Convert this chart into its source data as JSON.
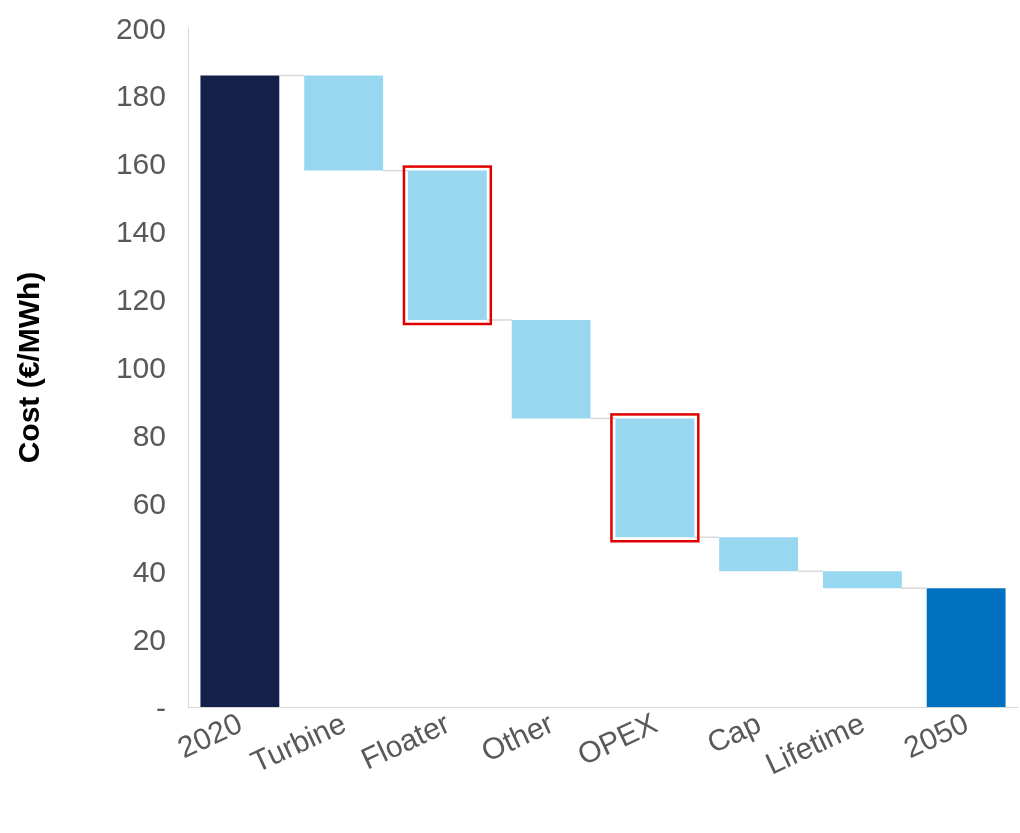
{
  "chart_data": {
    "type": "bar",
    "ylabel": "Cost (€/MWh)",
    "categories": [
      "2020",
      "Turbine",
      "Floater",
      "Other",
      "OPEX",
      "Cap",
      "Lifetime",
      "2050"
    ],
    "values": [
      186,
      -28,
      -44,
      -29,
      -35,
      -10,
      -5,
      35
    ],
    "base": [
      0,
      186,
      158,
      114,
      85,
      50,
      40,
      0
    ],
    "colors": [
      "#13214a",
      "#97d7ef",
      "#97d7ef",
      "#97d7ef",
      "#97d7ef",
      "#97d7ef",
      "#97d7ef",
      "#0070c0"
    ],
    "ylim": [
      0,
      200
    ],
    "yticks": [
      {
        "value": 0,
        "label": "-"
      },
      20,
      40,
      60,
      80,
      100,
      120,
      140,
      160,
      180,
      200
    ],
    "grid": false
  }
}
